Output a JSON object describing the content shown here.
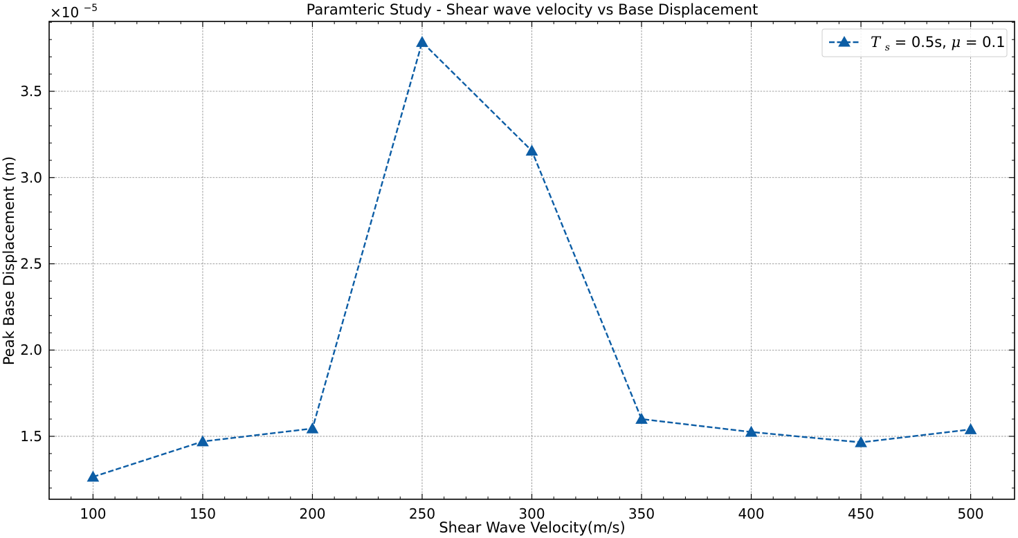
{
  "chart_data": {
    "type": "line",
    "title": "Paramteric Study - Shear wave velocity vs Base Displacement",
    "xlabel": "Shear Wave Velocity(m/s)",
    "ylabel": "Peak Base Displacement (m)",
    "y_scale_multiplier": "×10",
    "y_scale_exponent": "−5",
    "xlim": [
      80,
      520
    ],
    "ylim": [
      1.135,
      3.905
    ],
    "x_ticks": [
      100,
      150,
      200,
      250,
      300,
      350,
      400,
      450,
      500
    ],
    "x_tick_labels": [
      "100",
      "150",
      "200",
      "250",
      "300",
      "350",
      "400",
      "450",
      "500"
    ],
    "y_ticks": [
      1.5,
      2.0,
      2.5,
      3.0,
      3.5
    ],
    "y_tick_labels": [
      "1.5",
      "2.0",
      "2.5",
      "3.0",
      "3.5"
    ],
    "grid": true,
    "legend_position": "top-right",
    "series": [
      {
        "name_main": "T",
        "name_sub": "s",
        "name_rest": " = 0.5s, ",
        "name_mu": "μ",
        "name_end": " = 0.1",
        "color": "#0c5da5",
        "line_style": "dashed",
        "marker": "triangle-up",
        "x": [
          100,
          150,
          200,
          250,
          300,
          350,
          400,
          450,
          500
        ],
        "y": [
          1.265,
          1.47,
          1.545,
          3.785,
          3.155,
          1.6,
          1.525,
          1.465,
          1.54
        ]
      }
    ]
  }
}
